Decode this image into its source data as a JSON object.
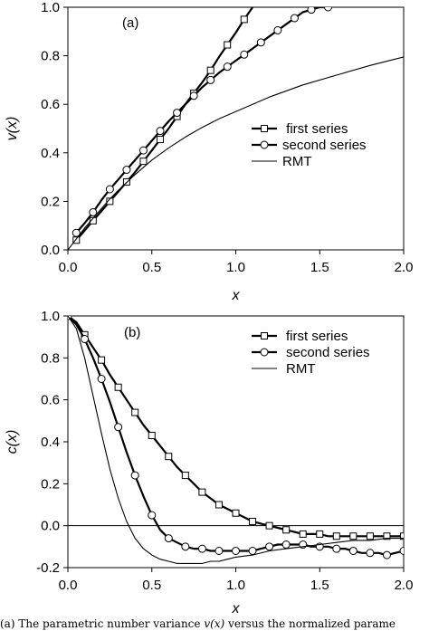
{
  "caption": {
    "prefix": "(a) The parametric number variance ",
    "math": "v(x)",
    "suffix": " versus the normalized parame"
  },
  "chart_data": [
    {
      "type": "line",
      "panel_label": "(a)",
      "xlabel": "x",
      "ylabel": "v(x)",
      "xlim": [
        0,
        2.0
      ],
      "ylim": [
        0,
        1.0
      ],
      "xticks": [
        0.0,
        0.5,
        1.0,
        1.5,
        2.0
      ],
      "xtick_labels": [
        "0.0",
        "0.5",
        "1.0",
        "1.5",
        "2.0"
      ],
      "yticks": [
        0.0,
        0.2,
        0.4,
        0.6,
        0.8,
        1.0
      ],
      "ytick_labels": [
        "0.0",
        "0.2",
        "0.4",
        "0.6",
        "0.8",
        "1.0"
      ],
      "grid": false,
      "legend_position": "center-right",
      "series": [
        {
          "name": "first series",
          "marker": "square",
          "line_width": "thick",
          "x": [
            0.05,
            0.1,
            0.15,
            0.2,
            0.25,
            0.3,
            0.35,
            0.4,
            0.45,
            0.5,
            0.55,
            0.6,
            0.65,
            0.7,
            0.75,
            0.8,
            0.85,
            0.9,
            0.95,
            1.0,
            1.05,
            1.1
          ],
          "y": [
            0.04,
            0.08,
            0.12,
            0.16,
            0.2,
            0.24,
            0.28,
            0.32,
            0.365,
            0.41,
            0.455,
            0.5,
            0.55,
            0.6,
            0.645,
            0.69,
            0.74,
            0.795,
            0.845,
            0.895,
            0.95,
            1.0
          ],
          "marker_every": 2
        },
        {
          "name": "second series",
          "marker": "circle",
          "line_width": "thick",
          "x": [
            0.05,
            0.1,
            0.15,
            0.2,
            0.25,
            0.3,
            0.35,
            0.4,
            0.45,
            0.5,
            0.55,
            0.6,
            0.65,
            0.7,
            0.75,
            0.8,
            0.85,
            0.9,
            0.95,
            1.0,
            1.05,
            1.1,
            1.15,
            1.2,
            1.25,
            1.3,
            1.35,
            1.4,
            1.45,
            1.5,
            1.55
          ],
          "y": [
            0.07,
            0.11,
            0.155,
            0.205,
            0.25,
            0.29,
            0.33,
            0.37,
            0.41,
            0.45,
            0.49,
            0.53,
            0.565,
            0.6,
            0.635,
            0.67,
            0.7,
            0.73,
            0.755,
            0.78,
            0.805,
            0.83,
            0.855,
            0.88,
            0.905,
            0.93,
            0.955,
            0.98,
            0.99,
            1.0,
            1.0
          ],
          "marker_every": 2
        },
        {
          "name": "RMT",
          "marker": "none",
          "line_width": "thin",
          "x": [
            0.0,
            0.05,
            0.1,
            0.15,
            0.2,
            0.25,
            0.3,
            0.4,
            0.5,
            0.6,
            0.7,
            0.8,
            0.9,
            1.0,
            1.2,
            1.4,
            1.6,
            1.8,
            2.0
          ],
          "y": [
            0.0,
            0.045,
            0.09,
            0.13,
            0.17,
            0.21,
            0.245,
            0.31,
            0.37,
            0.42,
            0.465,
            0.505,
            0.54,
            0.57,
            0.63,
            0.68,
            0.72,
            0.76,
            0.795
          ]
        }
      ],
      "legend_entries": [
        " first series",
        "second series",
        "RMT"
      ]
    },
    {
      "type": "line",
      "panel_label": "(b)",
      "xlabel": "x",
      "ylabel": "c(x)",
      "xlim": [
        0,
        2.0
      ],
      "ylim": [
        -0.2,
        1.0
      ],
      "xticks": [
        0.0,
        0.5,
        1.0,
        1.5,
        2.0
      ],
      "xtick_labels": [
        "0.0",
        "0.5",
        "1.0",
        "1.5",
        "2.0"
      ],
      "yticks": [
        -0.2,
        0.0,
        0.2,
        0.4,
        0.6,
        0.8,
        1.0
      ],
      "ytick_labels": [
        "-0.2",
        "0.0",
        "0.2",
        "0.4",
        "0.6",
        "0.8",
        "1.0"
      ],
      "zero_line": true,
      "grid": false,
      "legend_position": "top-right",
      "series": [
        {
          "name": "first series",
          "marker": "square",
          "line_width": "thick",
          "x": [
            0.0,
            0.05,
            0.1,
            0.15,
            0.2,
            0.25,
            0.3,
            0.35,
            0.4,
            0.45,
            0.5,
            0.55,
            0.6,
            0.65,
            0.7,
            0.75,
            0.8,
            0.85,
            0.9,
            0.95,
            1.0,
            1.05,
            1.1,
            1.15,
            1.2,
            1.25,
            1.3,
            1.35,
            1.4,
            1.45,
            1.5,
            1.55,
            1.6,
            1.65,
            1.7,
            1.75,
            1.8,
            1.85,
            1.9,
            1.95,
            2.0
          ],
          "y": [
            1.0,
            0.97,
            0.91,
            0.85,
            0.79,
            0.72,
            0.66,
            0.6,
            0.54,
            0.48,
            0.43,
            0.38,
            0.33,
            0.28,
            0.24,
            0.2,
            0.16,
            0.13,
            0.1,
            0.08,
            0.06,
            0.04,
            0.02,
            0.01,
            0.0,
            -0.01,
            -0.02,
            -0.03,
            -0.04,
            -0.04,
            -0.04,
            -0.05,
            -0.05,
            -0.05,
            -0.05,
            -0.05,
            -0.05,
            -0.05,
            -0.05,
            -0.05,
            -0.05
          ],
          "marker_every": 2
        },
        {
          "name": "second series",
          "marker": "circle",
          "line_width": "thick",
          "x": [
            0.0,
            0.05,
            0.1,
            0.15,
            0.2,
            0.25,
            0.3,
            0.35,
            0.4,
            0.45,
            0.5,
            0.55,
            0.6,
            0.65,
            0.7,
            0.75,
            0.8,
            0.85,
            0.9,
            0.95,
            1.0,
            1.05,
            1.1,
            1.15,
            1.2,
            1.25,
            1.3,
            1.35,
            1.4,
            1.45,
            1.5,
            1.55,
            1.6,
            1.65,
            1.7,
            1.75,
            1.8,
            1.85,
            1.9,
            1.95,
            2.0
          ],
          "y": [
            1.0,
            0.96,
            0.89,
            0.8,
            0.7,
            0.59,
            0.47,
            0.35,
            0.24,
            0.14,
            0.05,
            -0.02,
            -0.06,
            -0.08,
            -0.1,
            -0.11,
            -0.11,
            -0.12,
            -0.12,
            -0.12,
            -0.12,
            -0.12,
            -0.12,
            -0.11,
            -0.1,
            -0.09,
            -0.09,
            -0.09,
            -0.09,
            -0.1,
            -0.1,
            -0.1,
            -0.11,
            -0.11,
            -0.12,
            -0.13,
            -0.13,
            -0.13,
            -0.14,
            -0.13,
            -0.12
          ],
          "marker_every": 2
        },
        {
          "name": "RMT",
          "marker": "none",
          "line_width": "thin",
          "x": [
            0.0,
            0.05,
            0.1,
            0.15,
            0.2,
            0.25,
            0.3,
            0.35,
            0.4,
            0.45,
            0.5,
            0.55,
            0.6,
            0.65,
            0.7,
            0.75,
            0.8,
            0.85,
            0.9,
            0.95,
            1.0,
            1.1,
            1.2,
            1.3,
            1.4,
            1.5,
            1.6,
            1.7,
            1.8,
            1.9,
            2.0
          ],
          "y": [
            1.0,
            0.94,
            0.8,
            0.62,
            0.44,
            0.27,
            0.13,
            0.02,
            -0.06,
            -0.11,
            -0.14,
            -0.16,
            -0.17,
            -0.18,
            -0.18,
            -0.18,
            -0.18,
            -0.17,
            -0.17,
            -0.16,
            -0.15,
            -0.14,
            -0.12,
            -0.11,
            -0.1,
            -0.09,
            -0.08,
            -0.07,
            -0.07,
            -0.06,
            -0.06
          ]
        }
      ],
      "legend_entries": [
        "first series",
        "second series",
        "RMT"
      ]
    }
  ]
}
